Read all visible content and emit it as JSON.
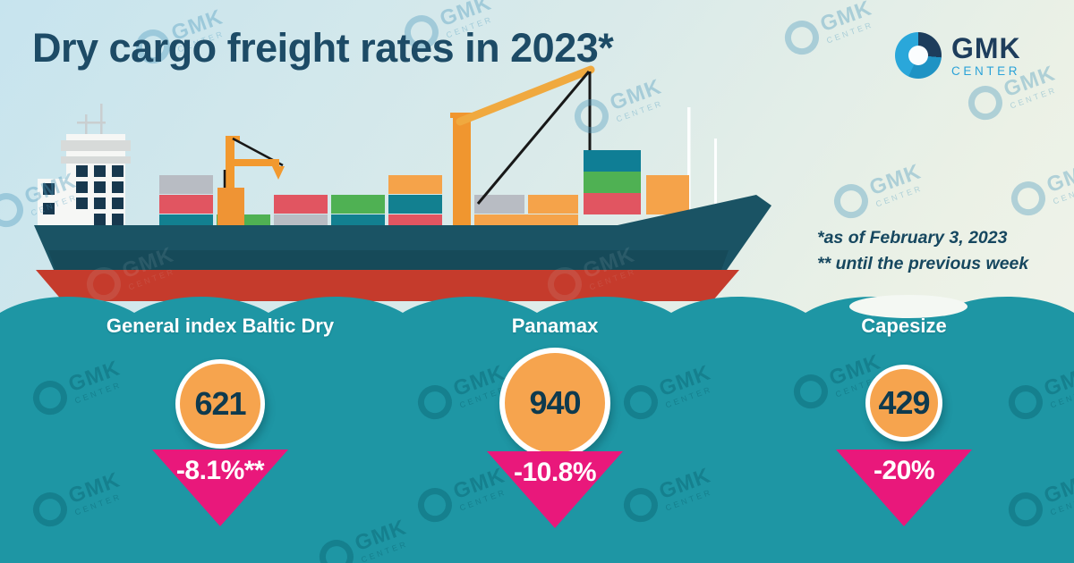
{
  "title": "Dry cargo freight rates in 2023*",
  "logo": {
    "name": "GMK",
    "subname": "CENTER"
  },
  "watermark": {
    "name": "GMK",
    "subname": "CENTER"
  },
  "notes": {
    "line1": "*as of February 3, 2023",
    "line2": "** until the previous week"
  },
  "stats": [
    {
      "label": "General index Baltic Dry",
      "value": "621",
      "change": "-8.1%**"
    },
    {
      "label": "Panamax",
      "value": "940",
      "change": "-10.8%"
    },
    {
      "label": "Capesize",
      "value": "429",
      "change": "-20%"
    }
  ],
  "colors": {
    "accent_pink": "#e9187b",
    "accent_orange": "#f6a44e",
    "water_teal": "#1e96a4",
    "title_navy": "#1d4b66",
    "hull_teal": "#1a5364",
    "hull_red": "#c53b2c",
    "logo_blue": "#2aa7da"
  },
  "chart_data": {
    "type": "table",
    "title": "Dry cargo freight rates in 2023*",
    "categories": [
      "General index Baltic Dry",
      "Panamax",
      "Capesize"
    ],
    "values": [
      621,
      940,
      429
    ],
    "change_percent": [
      -8.1,
      -10.8,
      -20
    ],
    "change_labels": [
      "-8.1%**",
      "-10.8%",
      "-20%"
    ],
    "as_of": "as of February 3, 2023",
    "change_note": "until the previous week",
    "legend_position": "none",
    "notes": "circle size roughly proportional to index value; pink triangles indicate weekly decline"
  }
}
